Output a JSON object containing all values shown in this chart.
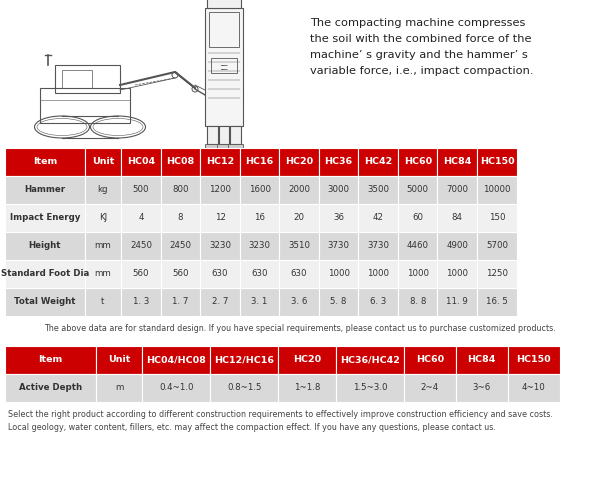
{
  "header_bg": "#CC0000",
  "header_fg": "#FFFFFF",
  "odd_row_bg": "#D9D9D9",
  "even_row_bg": "#F0F0F0",
  "text_color": "#333333",
  "description_text": "The compacting machine compresses\nthe soil with the combined force of the\nmachine’ s gravity and the hammer’ s\nvariable force, i.e., impact compaction.",
  "note1": "The above data are for standard design. If you have special requirements, please contact us to purchase customized products.",
  "note2": "Select the right product according to different construction requirements to effectively improve construction efficiency and save costs.\nLocal geology, water content, fillers, etc. may affect the compaction effect. If you have any questions, please contact us.",
  "table1_headers": [
    "Item",
    "Unit",
    "HC04",
    "HC08",
    "HC12",
    "HC16",
    "HC20",
    "HC36",
    "HC42",
    "HC60",
    "HC84",
    "HC150"
  ],
  "table1_rows": [
    [
      "Hammer",
      "kg",
      "500",
      "800",
      "1200",
      "1600",
      "2000",
      "3000",
      "3500",
      "5000",
      "7000",
      "10000"
    ],
    [
      "Impact Energy",
      "KJ",
      "4",
      "8",
      "12",
      "16",
      "20",
      "36",
      "42",
      "60",
      "84",
      "150"
    ],
    [
      "Height",
      "mm",
      "2450",
      "2450",
      "3230",
      "3230",
      "3510",
      "3730",
      "3730",
      "4460",
      "4900",
      "5700"
    ],
    [
      "Standard Foot Dia",
      "mm",
      "560",
      "560",
      "630",
      "630",
      "630",
      "1000",
      "1000",
      "1000",
      "1000",
      "1250"
    ],
    [
      "Total Weight",
      "t",
      "1. 3",
      "1. 7",
      "2. 7",
      "3. 1",
      "3. 6",
      "5. 8",
      "6. 3",
      "8. 8",
      "11. 9",
      "16. 5"
    ]
  ],
  "table2_headers": [
    "Item",
    "Unit",
    "HC04/HC08",
    "HC12/HC16",
    "HC20",
    "HC36/HC42",
    "HC60",
    "HC84",
    "HC150"
  ],
  "table2_rows": [
    [
      "Active Depth",
      "m",
      "0.4~1.0",
      "0.8~1.5",
      "1~1.8",
      "1.5~3.0",
      "2~4",
      "3~6",
      "4~10"
    ]
  ],
  "fig_width": 6.0,
  "fig_height": 4.93,
  "dpi": 100
}
